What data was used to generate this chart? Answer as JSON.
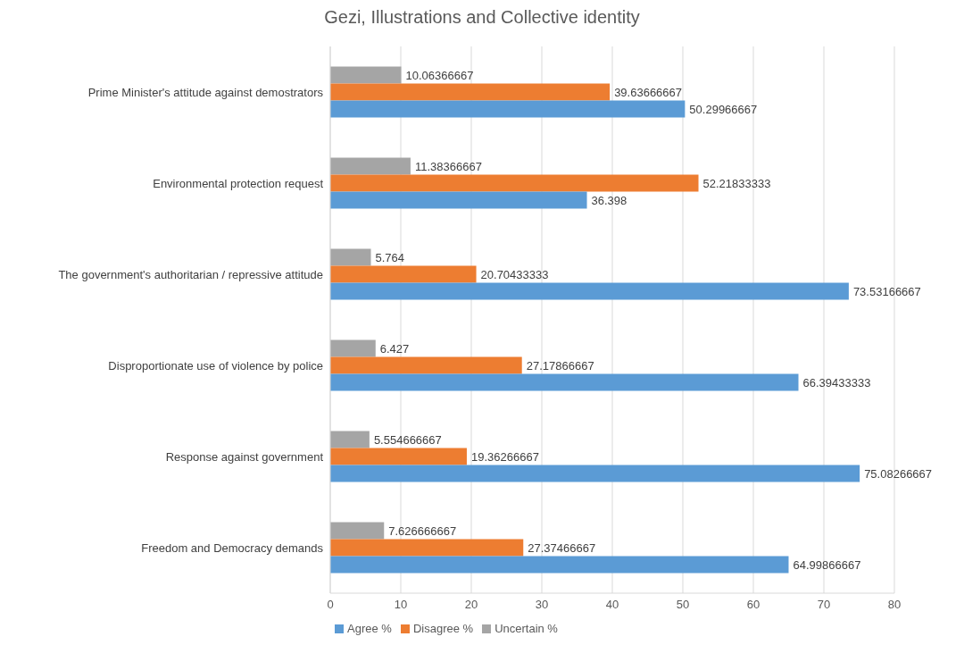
{
  "chart_data": {
    "type": "bar",
    "orientation": "horizontal",
    "title": "Gezi, Illustrations and Collective identity",
    "categories": [
      "Prime Minister's attitude against demostrators",
      "Environmental protection request",
      "The government's authoritarian / repressive attitude",
      "Disproportionate use of violence by police",
      "Response against government",
      "Freedom and Democracy demands"
    ],
    "series": [
      {
        "name": "Uncertain %",
        "color": "#a5a5a5",
        "values": [
          10.06366667,
          11.38366667,
          5.764,
          6.427,
          5.554666667,
          7.626666667
        ]
      },
      {
        "name": "Disagree %",
        "color": "#ed7d31",
        "values": [
          39.63666667,
          52.21833333,
          20.70433333,
          27.17866667,
          19.36266667,
          27.37466667
        ]
      },
      {
        "name": "Agree %",
        "color": "#5b9bd5",
        "values": [
          50.29966667,
          36.398,
          73.53166667,
          66.39433333,
          75.08266667,
          64.99866667
        ]
      }
    ],
    "xlim": [
      0,
      80
    ],
    "xticks": [
      0,
      10,
      20,
      30,
      40,
      50,
      60,
      70,
      80
    ],
    "grid": "x",
    "legend": "bottom",
    "data_labels": true
  }
}
